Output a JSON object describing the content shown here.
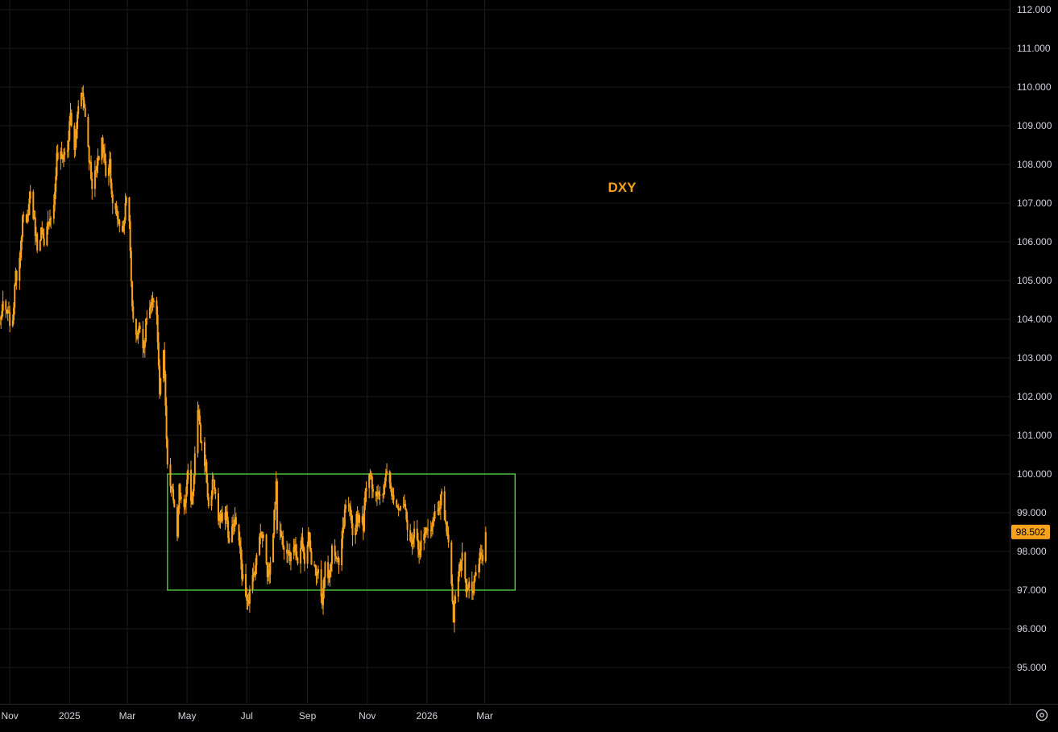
{
  "chart_data": {
    "type": "candlestick",
    "title": "DXY",
    "colors": {
      "candle": "#f7a21b",
      "range_box": "#4cbb3c",
      "background": "#000000",
      "grid": "#1c1c1c",
      "axis_text": "#d1d4dc"
    },
    "ylim": [
      94.0,
      112.2
    ],
    "yticks": [
      "112.000",
      "111.000",
      "110.000",
      "109.000",
      "108.000",
      "107.000",
      "106.000",
      "105.000",
      "104.000",
      "103.000",
      "102.000",
      "101.000",
      "100.000",
      "99.000",
      "98.000",
      "97.000",
      "96.000",
      "95.000"
    ],
    "xlim": [
      "2024-10-22",
      "2026-04-04"
    ],
    "xticks": [
      {
        "label": "Nov",
        "date": "2024-11-01"
      },
      {
        "label": "2025",
        "date": "2025-01-01"
      },
      {
        "label": "Mar",
        "date": "2025-03-01"
      },
      {
        "label": "May",
        "date": "2025-05-01"
      },
      {
        "label": "Jul",
        "date": "2025-07-01"
      },
      {
        "label": "Sep",
        "date": "2025-09-01"
      },
      {
        "label": "Nov",
        "date": "2025-11-01"
      },
      {
        "label": "2026",
        "date": "2026-01-01"
      },
      {
        "label": "Mar",
        "date": "2026-03-01"
      }
    ],
    "range_box": {
      "from": "2025-04-11",
      "to": "2026-04-01",
      "low": 97.0,
      "high": 100.0
    },
    "last_price": "98.502",
    "series": [
      {
        "close_path": [
          [
            "2024-10-22",
            104.0
          ],
          [
            "2024-10-25",
            104.3
          ],
          [
            "2024-10-30",
            104.1
          ],
          [
            "2024-11-04",
            103.8
          ],
          [
            "2024-11-06",
            105.0
          ],
          [
            "2024-11-10",
            105.3
          ],
          [
            "2024-11-14",
            106.6
          ],
          [
            "2024-11-18",
            106.4
          ],
          [
            "2024-11-22",
            107.3
          ],
          [
            "2024-11-26",
            106.5
          ],
          [
            "2024-11-29",
            105.9
          ],
          [
            "2024-12-03",
            106.3
          ],
          [
            "2024-12-06",
            105.8
          ],
          [
            "2024-12-11",
            106.6
          ],
          [
            "2024-12-16",
            106.9
          ],
          [
            "2024-12-19",
            108.2
          ],
          [
            "2024-12-24",
            108.2
          ],
          [
            "2024-12-30",
            108.4
          ],
          [
            "2025-01-02",
            109.3
          ],
          [
            "2025-01-06",
            108.3
          ],
          [
            "2025-01-10",
            109.6
          ],
          [
            "2025-01-13",
            110.0
          ],
          [
            "2025-01-17",
            109.3
          ],
          [
            "2025-01-21",
            108.2
          ],
          [
            "2025-01-24",
            107.5
          ],
          [
            "2025-01-28",
            107.8
          ],
          [
            "2025-01-31",
            108.2
          ],
          [
            "2025-02-03",
            108.7
          ],
          [
            "2025-02-07",
            107.8
          ],
          [
            "2025-02-11",
            108.1
          ],
          [
            "2025-02-14",
            106.9
          ],
          [
            "2025-02-18",
            106.7
          ],
          [
            "2025-02-21",
            106.5
          ],
          [
            "2025-02-25",
            106.3
          ],
          [
            "2025-02-28",
            107.3
          ],
          [
            "2025-03-03",
            106.4
          ],
          [
            "2025-03-05",
            105.0
          ],
          [
            "2025-03-07",
            103.9
          ],
          [
            "2025-03-11",
            103.6
          ],
          [
            "2025-03-14",
            103.8
          ],
          [
            "2025-03-18",
            103.3
          ],
          [
            "2025-03-21",
            104.1
          ],
          [
            "2025-03-26",
            104.4
          ],
          [
            "2025-03-31",
            104.2
          ],
          [
            "2025-04-03",
            102.1
          ],
          [
            "2025-04-07",
            103.2
          ],
          [
            "2025-04-10",
            100.9
          ],
          [
            "2025-04-11",
            100.1
          ],
          [
            "2025-04-15",
            99.6
          ],
          [
            "2025-04-18",
            99.2
          ],
          [
            "2025-04-21",
            98.3
          ],
          [
            "2025-04-23",
            99.6
          ],
          [
            "2025-04-28",
            99.2
          ],
          [
            "2025-05-02",
            100.0
          ],
          [
            "2025-05-06",
            99.2
          ],
          [
            "2025-05-09",
            100.5
          ],
          [
            "2025-05-12",
            101.6
          ],
          [
            "2025-05-15",
            100.9
          ],
          [
            "2025-05-20",
            100.2
          ],
          [
            "2025-05-23",
            99.1
          ],
          [
            "2025-05-28",
            99.9
          ],
          [
            "2025-06-02",
            98.8
          ],
          [
            "2025-06-05",
            98.8
          ],
          [
            "2025-06-10",
            99.0
          ],
          [
            "2025-06-13",
            98.2
          ],
          [
            "2025-06-18",
            98.8
          ],
          [
            "2025-06-22",
            98.6
          ],
          [
            "2025-06-26",
            97.4
          ],
          [
            "2025-06-30",
            96.9
          ],
          [
            "2025-07-03",
            96.8
          ],
          [
            "2025-07-07",
            97.3
          ],
          [
            "2025-07-11",
            97.8
          ],
          [
            "2025-07-15",
            98.6
          ],
          [
            "2025-07-18",
            98.4
          ],
          [
            "2025-07-22",
            97.4
          ],
          [
            "2025-07-25",
            97.6
          ],
          [
            "2025-07-29",
            98.9
          ],
          [
            "2025-07-31",
            99.9
          ],
          [
            "2025-08-01",
            98.7
          ],
          [
            "2025-08-05",
            98.4
          ],
          [
            "2025-08-08",
            98.2
          ],
          [
            "2025-08-12",
            98.1
          ],
          [
            "2025-08-15",
            97.8
          ],
          [
            "2025-08-19",
            98.3
          ],
          [
            "2025-08-22",
            97.7
          ],
          [
            "2025-08-26",
            98.2
          ],
          [
            "2025-08-29",
            97.8
          ],
          [
            "2025-09-02",
            98.4
          ],
          [
            "2025-09-05",
            97.8
          ],
          [
            "2025-09-09",
            97.5
          ],
          [
            "2025-09-12",
            97.6
          ],
          [
            "2025-09-16",
            96.7
          ],
          [
            "2025-09-19",
            97.6
          ],
          [
            "2025-09-23",
            97.2
          ],
          [
            "2025-09-26",
            98.1
          ],
          [
            "2025-09-30",
            97.8
          ],
          [
            "2025-10-03",
            97.6
          ],
          [
            "2025-10-08",
            98.7
          ],
          [
            "2025-10-10",
            99.2
          ],
          [
            "2025-10-14",
            99.0
          ],
          [
            "2025-10-17",
            98.4
          ],
          [
            "2025-10-21",
            98.9
          ],
          [
            "2025-10-24",
            98.9
          ],
          [
            "2025-10-28",
            98.7
          ],
          [
            "2025-10-31",
            99.8
          ],
          [
            "2025-11-04",
            100.1
          ],
          [
            "2025-11-07",
            99.6
          ],
          [
            "2025-11-11",
            99.5
          ],
          [
            "2025-11-14",
            99.3
          ],
          [
            "2025-11-18",
            99.6
          ],
          [
            "2025-11-21",
            100.2
          ],
          [
            "2025-11-25",
            99.6
          ],
          [
            "2025-11-28",
            99.5
          ],
          [
            "2025-12-02",
            99.2
          ],
          [
            "2025-12-05",
            99.0
          ],
          [
            "2025-12-09",
            99.2
          ],
          [
            "2025-12-12",
            98.4
          ],
          [
            "2025-12-16",
            98.2
          ],
          [
            "2025-12-19",
            98.6
          ],
          [
            "2025-12-23",
            98.0
          ],
          [
            "2025-12-26",
            98.2
          ],
          [
            "2025-12-30",
            98.4
          ],
          [
            "2026-01-02",
            98.7
          ],
          [
            "2026-01-06",
            98.6
          ],
          [
            "2026-01-09",
            99.0
          ],
          [
            "2026-01-13",
            99.2
          ],
          [
            "2026-01-16",
            99.4
          ],
          [
            "2026-01-20",
            98.8
          ],
          [
            "2026-01-23",
            98.1
          ],
          [
            "2026-01-26",
            97.3
          ],
          [
            "2026-01-28",
            96.3
          ],
          [
            "2026-01-30",
            96.9
          ],
          [
            "2026-02-03",
            97.5
          ],
          [
            "2026-02-06",
            97.8
          ],
          [
            "2026-02-10",
            96.9
          ],
          [
            "2026-02-13",
            97.1
          ],
          [
            "2026-02-17",
            96.9
          ],
          [
            "2026-02-20",
            97.6
          ],
          [
            "2026-02-24",
            97.8
          ],
          [
            "2026-02-27",
            97.7
          ],
          [
            "2026-03-02",
            98.5
          ]
        ]
      }
    ]
  },
  "controls": {
    "settings_icon": "gear-icon"
  }
}
